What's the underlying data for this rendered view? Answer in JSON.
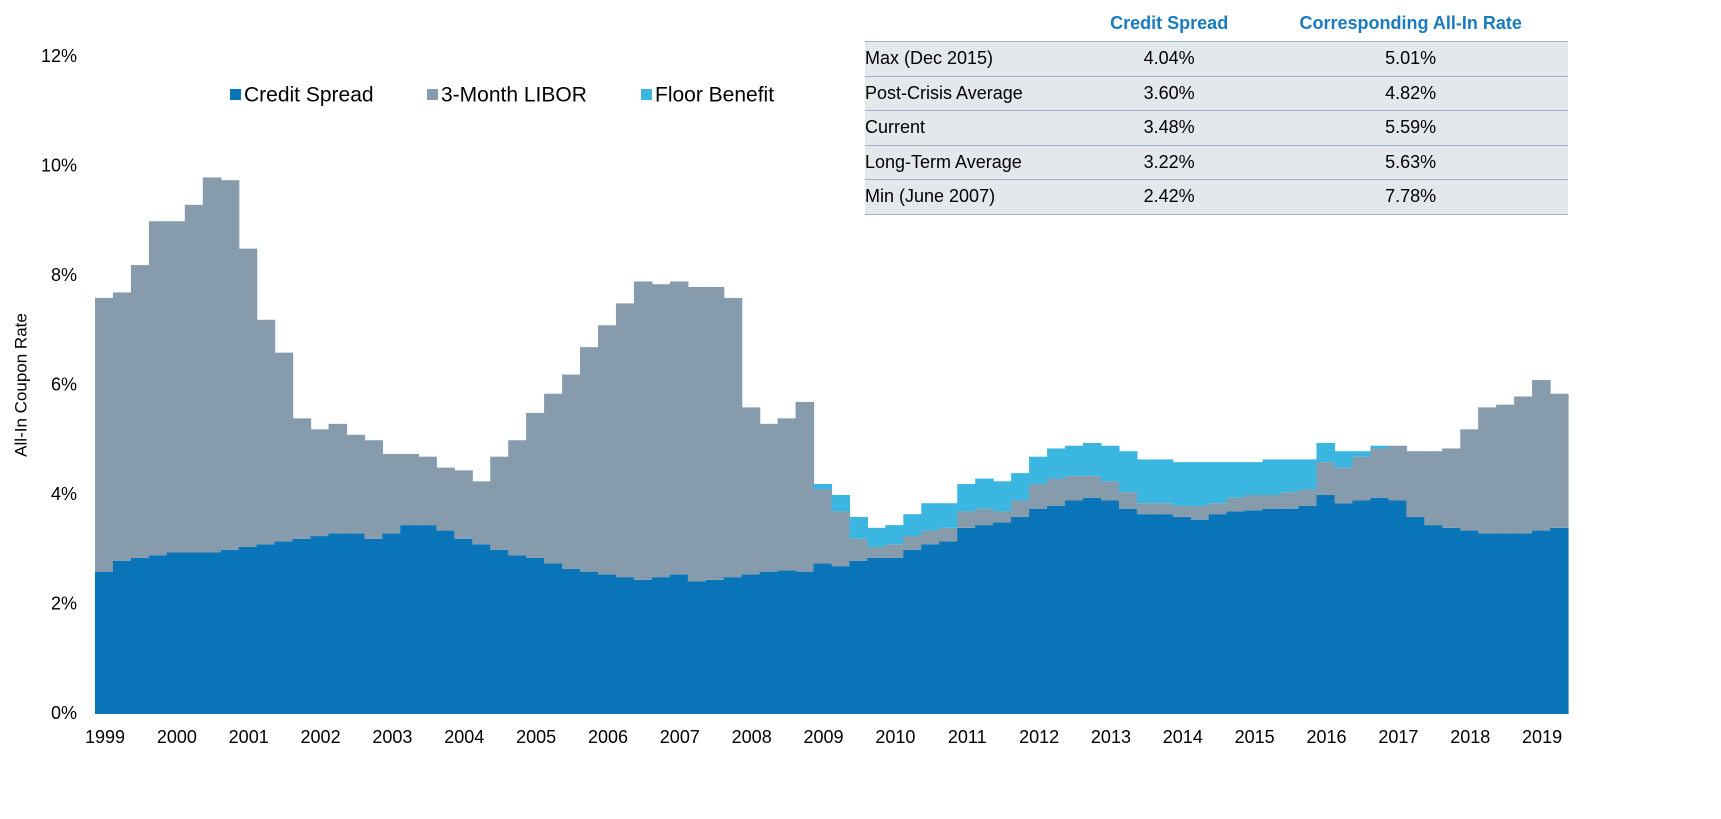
{
  "chart_data": {
    "type": "stacked-step-area",
    "y_label": "All-In Coupon Rate",
    "categories": [
      "1999",
      null,
      null,
      null,
      "2000",
      null,
      null,
      null,
      "2001",
      null,
      null,
      null,
      "2002",
      null,
      null,
      null,
      "2003",
      null,
      null,
      null,
      "2004",
      null,
      null,
      null,
      "2005",
      null,
      null,
      null,
      "2006",
      null,
      null,
      null,
      "2007",
      null,
      null,
      null,
      "2008",
      null,
      null,
      null,
      "2009",
      null,
      null,
      null,
      "2010",
      null,
      null,
      null,
      "2011",
      null,
      null,
      null,
      "2012",
      null,
      null,
      null,
      "2013",
      null,
      null,
      null,
      "2014",
      null,
      null,
      null,
      "2015",
      null,
      null,
      null,
      "2016",
      null,
      null,
      null,
      "2017",
      null,
      null,
      null,
      "2018",
      null,
      null,
      null,
      "2019",
      null
    ],
    "series": [
      {
        "name": "Credit Spread",
        "color": "#0a74b9",
        "values": [
          2.6,
          2.8,
          2.85,
          2.9,
          2.95,
          2.95,
          2.95,
          3.0,
          3.05,
          3.1,
          3.15,
          3.2,
          3.25,
          3.3,
          3.3,
          3.2,
          3.3,
          3.45,
          3.45,
          3.35,
          3.2,
          3.1,
          3.0,
          2.9,
          2.85,
          2.75,
          2.65,
          2.6,
          2.55,
          2.5,
          2.45,
          2.5,
          2.55,
          2.42,
          2.45,
          2.5,
          2.55,
          2.6,
          2.62,
          2.6,
          2.75,
          2.7,
          2.8,
          2.85,
          2.85,
          3.0,
          3.1,
          3.15,
          3.4,
          3.45,
          3.5,
          3.6,
          3.75,
          3.8,
          3.9,
          3.95,
          3.9,
          3.75,
          3.65,
          3.65,
          3.6,
          3.55,
          3.65,
          3.7,
          3.72,
          3.75,
          3.75,
          3.8,
          4.0,
          3.85,
          3.9,
          3.95,
          3.9,
          3.6,
          3.45,
          3.4,
          3.35,
          3.3,
          3.3,
          3.3,
          3.35,
          3.4
        ]
      },
      {
        "name": "3-Month LIBOR",
        "color": "#869cad",
        "values": [
          5.0,
          4.9,
          5.35,
          6.1,
          6.05,
          6.35,
          6.85,
          6.75,
          5.45,
          4.1,
          3.45,
          2.2,
          1.95,
          2.0,
          1.8,
          1.8,
          1.45,
          1.3,
          1.25,
          1.15,
          1.25,
          1.15,
          1.7,
          2.1,
          2.65,
          3.1,
          3.55,
          4.1,
          4.55,
          5.0,
          5.45,
          5.35,
          5.35,
          5.38,
          5.35,
          5.1,
          3.05,
          2.7,
          2.78,
          3.1,
          1.35,
          1.0,
          0.4,
          0.2,
          0.25,
          0.25,
          0.25,
          0.25,
          0.3,
          0.3,
          0.2,
          0.3,
          0.45,
          0.5,
          0.45,
          0.4,
          0.35,
          0.3,
          0.2,
          0.2,
          0.2,
          0.25,
          0.2,
          0.25,
          0.28,
          0.25,
          0.3,
          0.3,
          0.6,
          0.65,
          0.8,
          0.9,
          1.0,
          1.2,
          1.35,
          1.45,
          1.85,
          2.3,
          2.35,
          2.5,
          2.75,
          2.45
        ]
      },
      {
        "name": "Floor Benefit",
        "color": "#3bb6e1",
        "values": [
          0,
          0,
          0,
          0,
          0,
          0,
          0,
          0,
          0,
          0,
          0,
          0,
          0,
          0,
          0,
          0,
          0,
          0,
          0,
          0,
          0,
          0,
          0,
          0,
          0,
          0,
          0,
          0,
          0,
          0,
          0,
          0,
          0,
          0,
          0,
          0,
          0,
          0,
          0,
          0,
          0.1,
          0.3,
          0.4,
          0.35,
          0.35,
          0.4,
          0.5,
          0.45,
          0.5,
          0.55,
          0.55,
          0.5,
          0.5,
          0.55,
          0.55,
          0.6,
          0.65,
          0.75,
          0.8,
          0.8,
          0.8,
          0.8,
          0.75,
          0.65,
          0.6,
          0.65,
          0.6,
          0.55,
          0.35,
          0.3,
          0.1,
          0.05,
          0,
          0,
          0,
          0,
          0,
          0,
          0,
          0,
          0,
          0
        ]
      }
    ],
    "ylim": [
      0,
      12
    ],
    "yticks": [
      {
        "value": 0,
        "label": "0%"
      },
      {
        "value": 2,
        "label": "2%"
      },
      {
        "value": 4,
        "label": "4%"
      },
      {
        "value": 6,
        "label": "6%"
      },
      {
        "value": 8,
        "label": "8%"
      },
      {
        "value": 10,
        "label": "10%"
      },
      {
        "value": 12,
        "label": "12%"
      }
    ],
    "grid": false
  },
  "table": {
    "header": [
      "Credit Spread",
      "Corresponding All-In Rate"
    ],
    "rows": [
      [
        "Max (Dec 2015)",
        "4.04%",
        "5.01%"
      ],
      [
        "Post-Crisis Average",
        "3.60%",
        "4.82%"
      ],
      [
        "Current",
        "3.48%",
        "5.59%"
      ],
      [
        "Long-Term Average",
        "3.22%",
        "5.63%"
      ],
      [
        "Min (June 2007)",
        "2.42%",
        "7.78%"
      ]
    ]
  }
}
